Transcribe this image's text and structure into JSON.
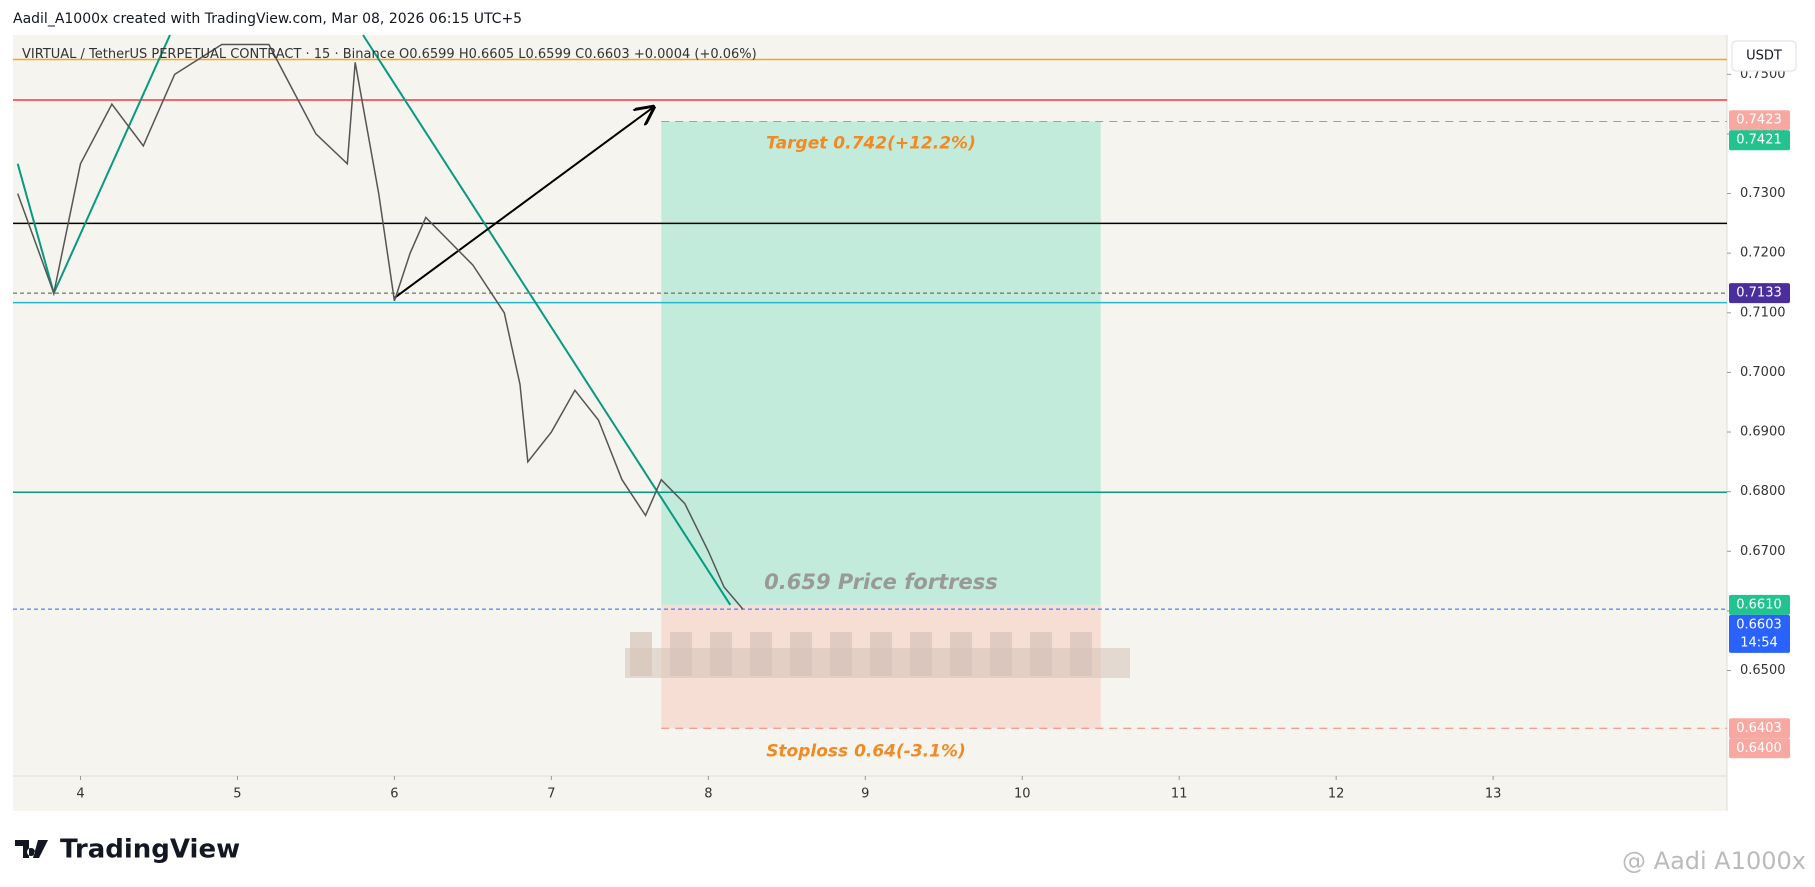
{
  "header": "Aadil_A1000x created with TradingView.com, Mar 08, 2026 06:15 UTC+5",
  "brand": "TradingView",
  "watermark": "@ Aadi A1000x",
  "chart_data": {
    "type": "line",
    "title": "VIRTUAL / TetherUS PERPETUAL CONTRACT · 15 · Binance",
    "ohlc": [
      "O0.6599",
      "H0.6605",
      "L0.6599",
      "C0.6603",
      "+0.0004 (+0.06%)"
    ],
    "currency": "USDT",
    "color": "#555555",
    "x": [
      3.6,
      3.83,
      4.0,
      4.2,
      4.4,
      4.6,
      4.9,
      5.2,
      5.3,
      5.5,
      5.7,
      5.75,
      5.9,
      6.0,
      6.1,
      6.2,
      6.35,
      6.5,
      6.7,
      6.8,
      6.85,
      7.0,
      7.15,
      7.3,
      7.45,
      7.6,
      7.7,
      7.85,
      8.0,
      8.1,
      8.22
    ],
    "values": [
      0.73,
      0.7133,
      0.735,
      0.745,
      0.738,
      0.75,
      0.755,
      0.755,
      0.75,
      0.74,
      0.735,
      0.752,
      0.73,
      0.712,
      0.72,
      0.726,
      0.722,
      0.718,
      0.71,
      0.698,
      0.685,
      0.69,
      0.697,
      0.692,
      0.682,
      0.676,
      0.682,
      0.678,
      0.67,
      0.664,
      0.6603
    ],
    "xlim": [
      3.57,
      14.49
    ],
    "xticks": [
      4,
      5,
      6,
      7,
      8,
      9,
      10,
      11,
      12,
      13
    ],
    "ylim": [
      0.6323,
      0.7566
    ],
    "yticks": [
      {
        "value": 0.65,
        "label": "0.6500"
      },
      {
        "value": 0.66,
        "label": "0.6600"
      },
      {
        "value": 0.67,
        "label": "0.6700"
      },
      {
        "value": 0.68,
        "label": "0.6800"
      },
      {
        "value": 0.69,
        "label": "0.6900"
      },
      {
        "value": 0.7,
        "label": "0.7000"
      },
      {
        "value": 0.71,
        "label": "0.7100"
      },
      {
        "value": 0.72,
        "label": "0.7200"
      },
      {
        "value": 0.73,
        "label": "0.7300"
      },
      {
        "value": 0.74,
        "label": "0.7400"
      },
      {
        "value": 0.75,
        "label": "0.7500"
      }
    ],
    "hlines": [
      {
        "value": 0.7525,
        "color": "#f5a623",
        "dash": false
      },
      {
        "value": 0.7457,
        "color": "#f23645",
        "dash": false
      },
      {
        "value": 0.725,
        "color": "#000000",
        "dash": false
      },
      {
        "value": 0.7133,
        "color": "#555555",
        "dash": true
      },
      {
        "value": 0.7117,
        "color": "#22b8cf",
        "dash": false
      },
      {
        "value": 0.6799,
        "color": "#089981",
        "dash": false
      },
      {
        "value": 0.6603,
        "color": "#2962ff",
        "dash": true
      }
    ],
    "price_labels": [
      {
        "value": 0.7423,
        "label": "0.7423",
        "color": "#f7a8a0"
      },
      {
        "value": 0.7421,
        "label": "0.7421",
        "color": "#22c38e"
      },
      {
        "value": 0.7133,
        "label": "0.7133",
        "color": "#4a2e9e"
      },
      {
        "value": 0.661,
        "label": "0.6610",
        "color": "#22c38e"
      },
      {
        "value": 0.6603,
        "label": "0.6603",
        "color": "#2962ff",
        "sublabel": "14:54"
      },
      {
        "value": 0.6403,
        "label": "0.6403",
        "color": "#f7a8a0"
      },
      {
        "value": 0.64,
        "label": "0.6400",
        "color": "#f7a8a0"
      }
    ],
    "drawings": [
      {
        "x": [
          3.6,
          3.83,
          4.57
        ],
        "values": [
          0.735,
          0.7133,
          0.7566
        ],
        "color": "#089981"
      },
      {
        "x": [
          5.8,
          8.14
        ],
        "values": [
          0.7566,
          0.661
        ],
        "color": "#089981"
      },
      {
        "x": [
          6.0,
          7.65
        ],
        "values": [
          0.7125,
          0.7445
        ],
        "color": "#000000",
        "arrow": true
      }
    ],
    "position": {
      "x": [
        7.7,
        10.5
      ],
      "entry": 0.661,
      "target": 0.7421,
      "stop": 0.6403
    },
    "target_label": "Target 0.742(+12.2%)",
    "fortress_label": "0.659 Price fortress",
    "stop_label": "Stoploss 0.64(-3.1%)"
  }
}
